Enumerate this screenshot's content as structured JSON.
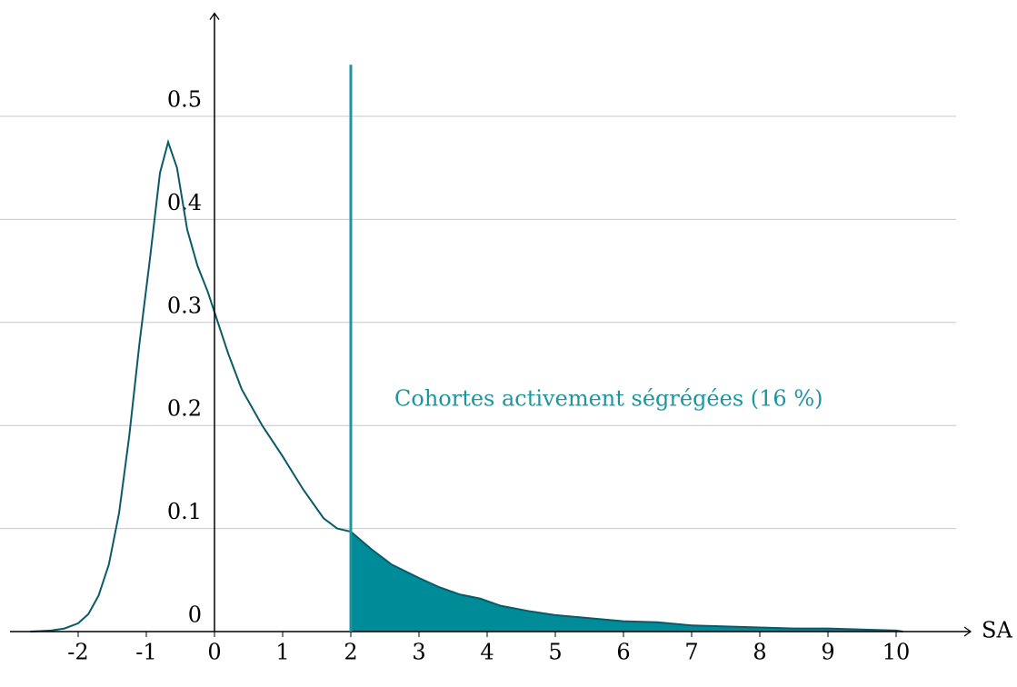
{
  "chart_data": {
    "type": "area",
    "x_label": "SA",
    "xlim": [
      -3,
      11
    ],
    "ylim": [
      0,
      0.6
    ],
    "xticks": [
      -2,
      -1,
      0,
      1,
      2,
      3,
      4,
      5,
      6,
      7,
      8,
      9,
      10
    ],
    "yticks": [
      0,
      0.1,
      0.2,
      0.3,
      0.4,
      0.5
    ],
    "grid": true,
    "x": [
      -2.7,
      -2.4,
      -2.2,
      -2.0,
      -1.85,
      -1.7,
      -1.55,
      -1.4,
      -1.25,
      -1.1,
      -0.95,
      -0.8,
      -0.68,
      -0.55,
      -0.4,
      -0.25,
      -0.1,
      0,
      0.2,
      0.4,
      0.7,
      1.0,
      1.3,
      1.6,
      1.8,
      2.0,
      2.3,
      2.6,
      3.0,
      3.3,
      3.6,
      3.9,
      4.2,
      4.6,
      5.0,
      5.5,
      6.0,
      6.5,
      7.0,
      7.5,
      8.0,
      8.5,
      9.0,
      9.5,
      10.0,
      10.1
    ],
    "series": [
      {
        "color": "#0b5a68",
        "fill": "#008b99",
        "values": [
          0,
          0.001,
          0.003,
          0.008,
          0.017,
          0.035,
          0.065,
          0.115,
          0.19,
          0.28,
          0.36,
          0.445,
          0.475,
          0.45,
          0.39,
          0.355,
          0.33,
          0.31,
          0.27,
          0.235,
          0.2,
          0.17,
          0.138,
          0.11,
          0.1,
          0.097,
          0.08,
          0.065,
          0.052,
          0.043,
          0.036,
          0.032,
          0.025,
          0.02,
          0.016,
          0.013,
          0.01,
          0.009,
          0.006,
          0.005,
          0.004,
          0.003,
          0.003,
          0.002,
          0.001,
          0
        ]
      }
    ],
    "threshold": {
      "x": 2,
      "y": 0.55,
      "color": "#1b96a0"
    },
    "annotation": "Cohortes activement ségrégées (16 %)"
  }
}
